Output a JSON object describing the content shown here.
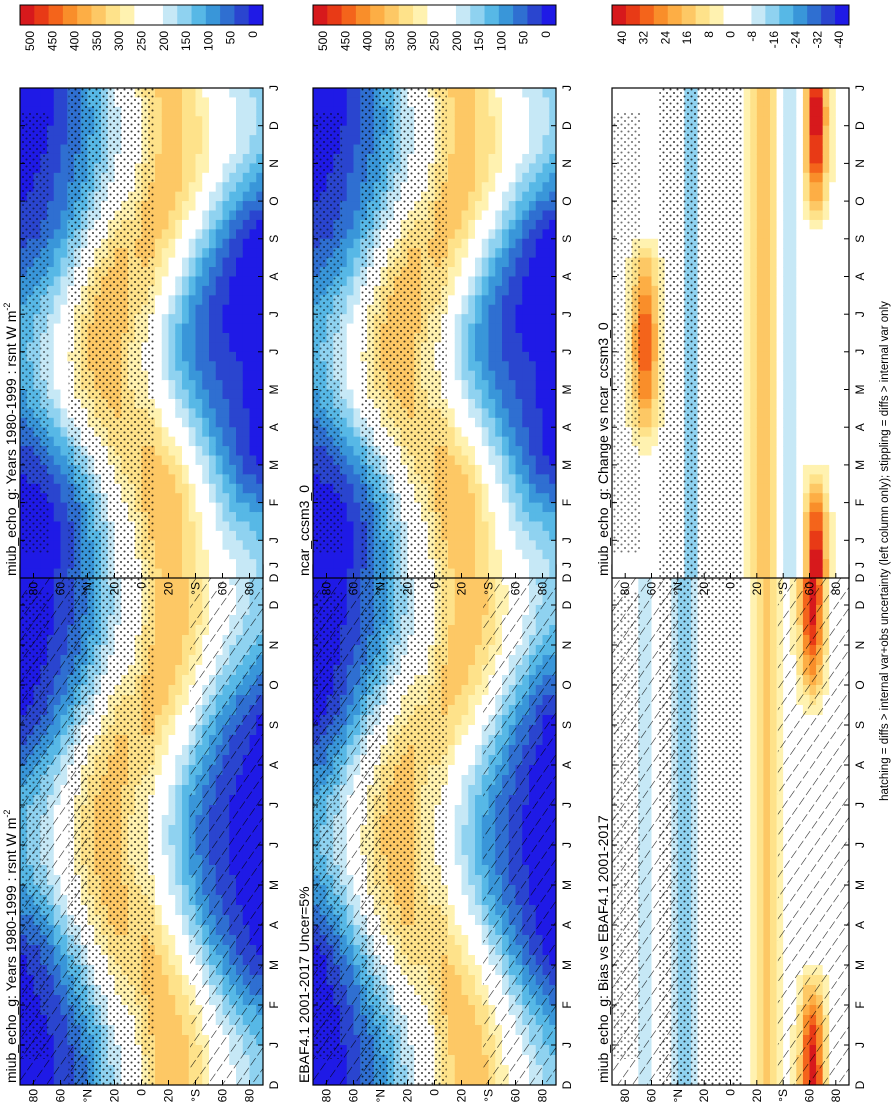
{
  "figure": {
    "footnote": "hatching = diffs > internal var+obs uncertainty (left column only); stippling = diffs > internal var only"
  },
  "colorbars": {
    "absolute": {
      "labels": [
        "500",
        "450",
        "400",
        "350",
        "300",
        "250",
        "200",
        "150",
        "100",
        "50",
        "0"
      ],
      "colors": [
        "#d7191c",
        "#e83a16",
        "#f4641b",
        "#f98e2a",
        "#fdae45",
        "#fdc865",
        "#fee28a",
        "#fff2b0",
        "#ffffff",
        "#ffffff",
        "#c6e8f6",
        "#8fd2f0",
        "#57b8e6",
        "#3996d9",
        "#2f6fd1",
        "#2a45cf",
        "#1f1ae6"
      ]
    },
    "difference": {
      "labels": [
        "40",
        "32",
        "24",
        "16",
        "8",
        "0",
        "-8",
        "-16",
        "-24",
        "-32",
        "-40"
      ],
      "colors": [
        "#d7191c",
        "#e83a16",
        "#f4641b",
        "#f98e2a",
        "#fdae45",
        "#fdc865",
        "#fee28a",
        "#fff2b0",
        "#ffffff",
        "#ffffff",
        "#c6e8f6",
        "#8fd2f0",
        "#57b8e6",
        "#3996d9",
        "#2f6fd1",
        "#2a45cf",
        "#1f1ae6"
      ]
    }
  },
  "chart_data": [
    {
      "id": "p1",
      "type": "heatmap",
      "kind": "absolute",
      "hatching": true,
      "stippling": true,
      "title": "miub_echo_g: Years 1980-1999 : rsnt W m",
      "title_superscript": "-2",
      "x": [
        "D",
        "J",
        "F",
        "M",
        "A",
        "M",
        "J",
        "J",
        "A",
        "S",
        "O",
        "N",
        "D",
        "J"
      ],
      "y_labels": [
        "80",
        "60",
        "°N",
        "20",
        "0",
        "20",
        "°S",
        "60",
        "80"
      ],
      "y_range": [
        90,
        -90
      ],
      "units": "W m-2",
      "clim": [
        0,
        500
      ]
    },
    {
      "id": "p2",
      "type": "heatmap",
      "kind": "absolute",
      "hatching": false,
      "stippling": true,
      "title": "miub_echo_g: Years 1980-1999 : rsnt W m",
      "title_superscript": "-2",
      "x": [
        "D",
        "J",
        "F",
        "M",
        "A",
        "M",
        "J",
        "J",
        "A",
        "S",
        "O",
        "N",
        "D",
        "J"
      ],
      "y_labels": [
        "80",
        "60",
        "°N",
        "20",
        "0",
        "20",
        "°S",
        "60",
        "80"
      ],
      "y_range": [
        90,
        -90
      ],
      "units": "W m-2",
      "clim": [
        0,
        500
      ]
    },
    {
      "id": "p3",
      "type": "heatmap",
      "kind": "absolute",
      "hatching": true,
      "stippling": true,
      "title": "EBAF4.1 2001-2017 Uncer=5%",
      "title_superscript": "",
      "x": [
        "D",
        "J",
        "F",
        "M",
        "A",
        "M",
        "J",
        "J",
        "A",
        "S",
        "O",
        "N",
        "D",
        "J"
      ],
      "y_labels": [
        "80",
        "60",
        "°N",
        "20",
        "0",
        "20",
        "°S",
        "60",
        "80"
      ],
      "y_range": [
        90,
        -90
      ],
      "units": "W m-2",
      "clim": [
        0,
        500
      ]
    },
    {
      "id": "p4",
      "type": "heatmap",
      "kind": "absolute",
      "hatching": false,
      "stippling": true,
      "title": "ncar_ccsm3_0",
      "title_superscript": "",
      "x": [
        "D",
        "J",
        "F",
        "M",
        "A",
        "M",
        "J",
        "J",
        "A",
        "S",
        "O",
        "N",
        "D",
        "J"
      ],
      "y_labels": [
        "80",
        "60",
        "°N",
        "20",
        "0",
        "20",
        "°S",
        "60",
        "80"
      ],
      "y_range": [
        90,
        -90
      ],
      "units": "W m-2",
      "clim": [
        0,
        500
      ]
    },
    {
      "id": "p5",
      "type": "heatmap",
      "kind": "difference",
      "hatching": true,
      "stippling": true,
      "title": "miub_echo_g: Bias vs EBAF4.1 2001-2017",
      "title_superscript": "",
      "x": [
        "D",
        "J",
        "F",
        "M",
        "A",
        "M",
        "J",
        "J",
        "A",
        "S",
        "O",
        "N",
        "D",
        "J"
      ],
      "y_labels": [
        "80",
        "60",
        "°N",
        "20",
        "0",
        "20",
        "°S",
        "60",
        "80"
      ],
      "y_range": [
        90,
        -90
      ],
      "units": "W m-2",
      "clim": [
        -40,
        40
      ]
    },
    {
      "id": "p6",
      "type": "heatmap",
      "kind": "difference",
      "hatching": false,
      "stippling": true,
      "title": "miub_echo_g: Change vs ncar_ccsm3_0",
      "title_superscript": "",
      "x": [
        "D",
        "J",
        "F",
        "M",
        "A",
        "M",
        "J",
        "J",
        "A",
        "S",
        "O",
        "N",
        "D",
        "J"
      ],
      "y_labels": [
        "80",
        "60",
        "°N",
        "20",
        "0",
        "20",
        "°S",
        "60",
        "80"
      ],
      "y_range": [
        90,
        -90
      ],
      "units": "W m-2",
      "clim": [
        -40,
        40
      ]
    }
  ]
}
